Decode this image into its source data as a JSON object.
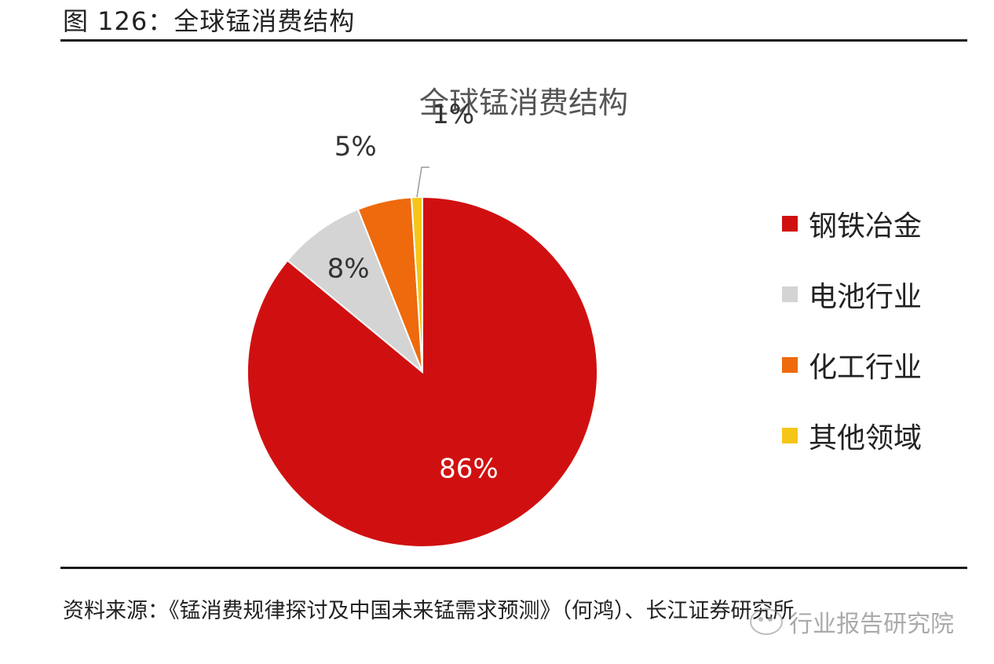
{
  "figure_title": "图 126：全球锰消费结构",
  "source": "资料来源：《锰消费规律探讨及中国未来锰需求预测》（何鸿）、长江证券研究所",
  "watermark": "行业报告研究院",
  "colors": {
    "steel": "#d01010",
    "battery": "#d4d4d4",
    "chemical": "#ee6a0c",
    "other": "#f5c518"
  },
  "chart_data": {
    "type": "pie",
    "title": "全球锰消费结构",
    "categories": [
      "钢铁冶金",
      "电池行业",
      "化工行业",
      "其他领域"
    ],
    "values": [
      86,
      8,
      5,
      1
    ],
    "labels": [
      "86%",
      "8%",
      "5%",
      "1%"
    ],
    "colors": [
      "#d01010",
      "#d4d4d4",
      "#ee6a0c",
      "#f5c518"
    ],
    "legend": "right"
  }
}
